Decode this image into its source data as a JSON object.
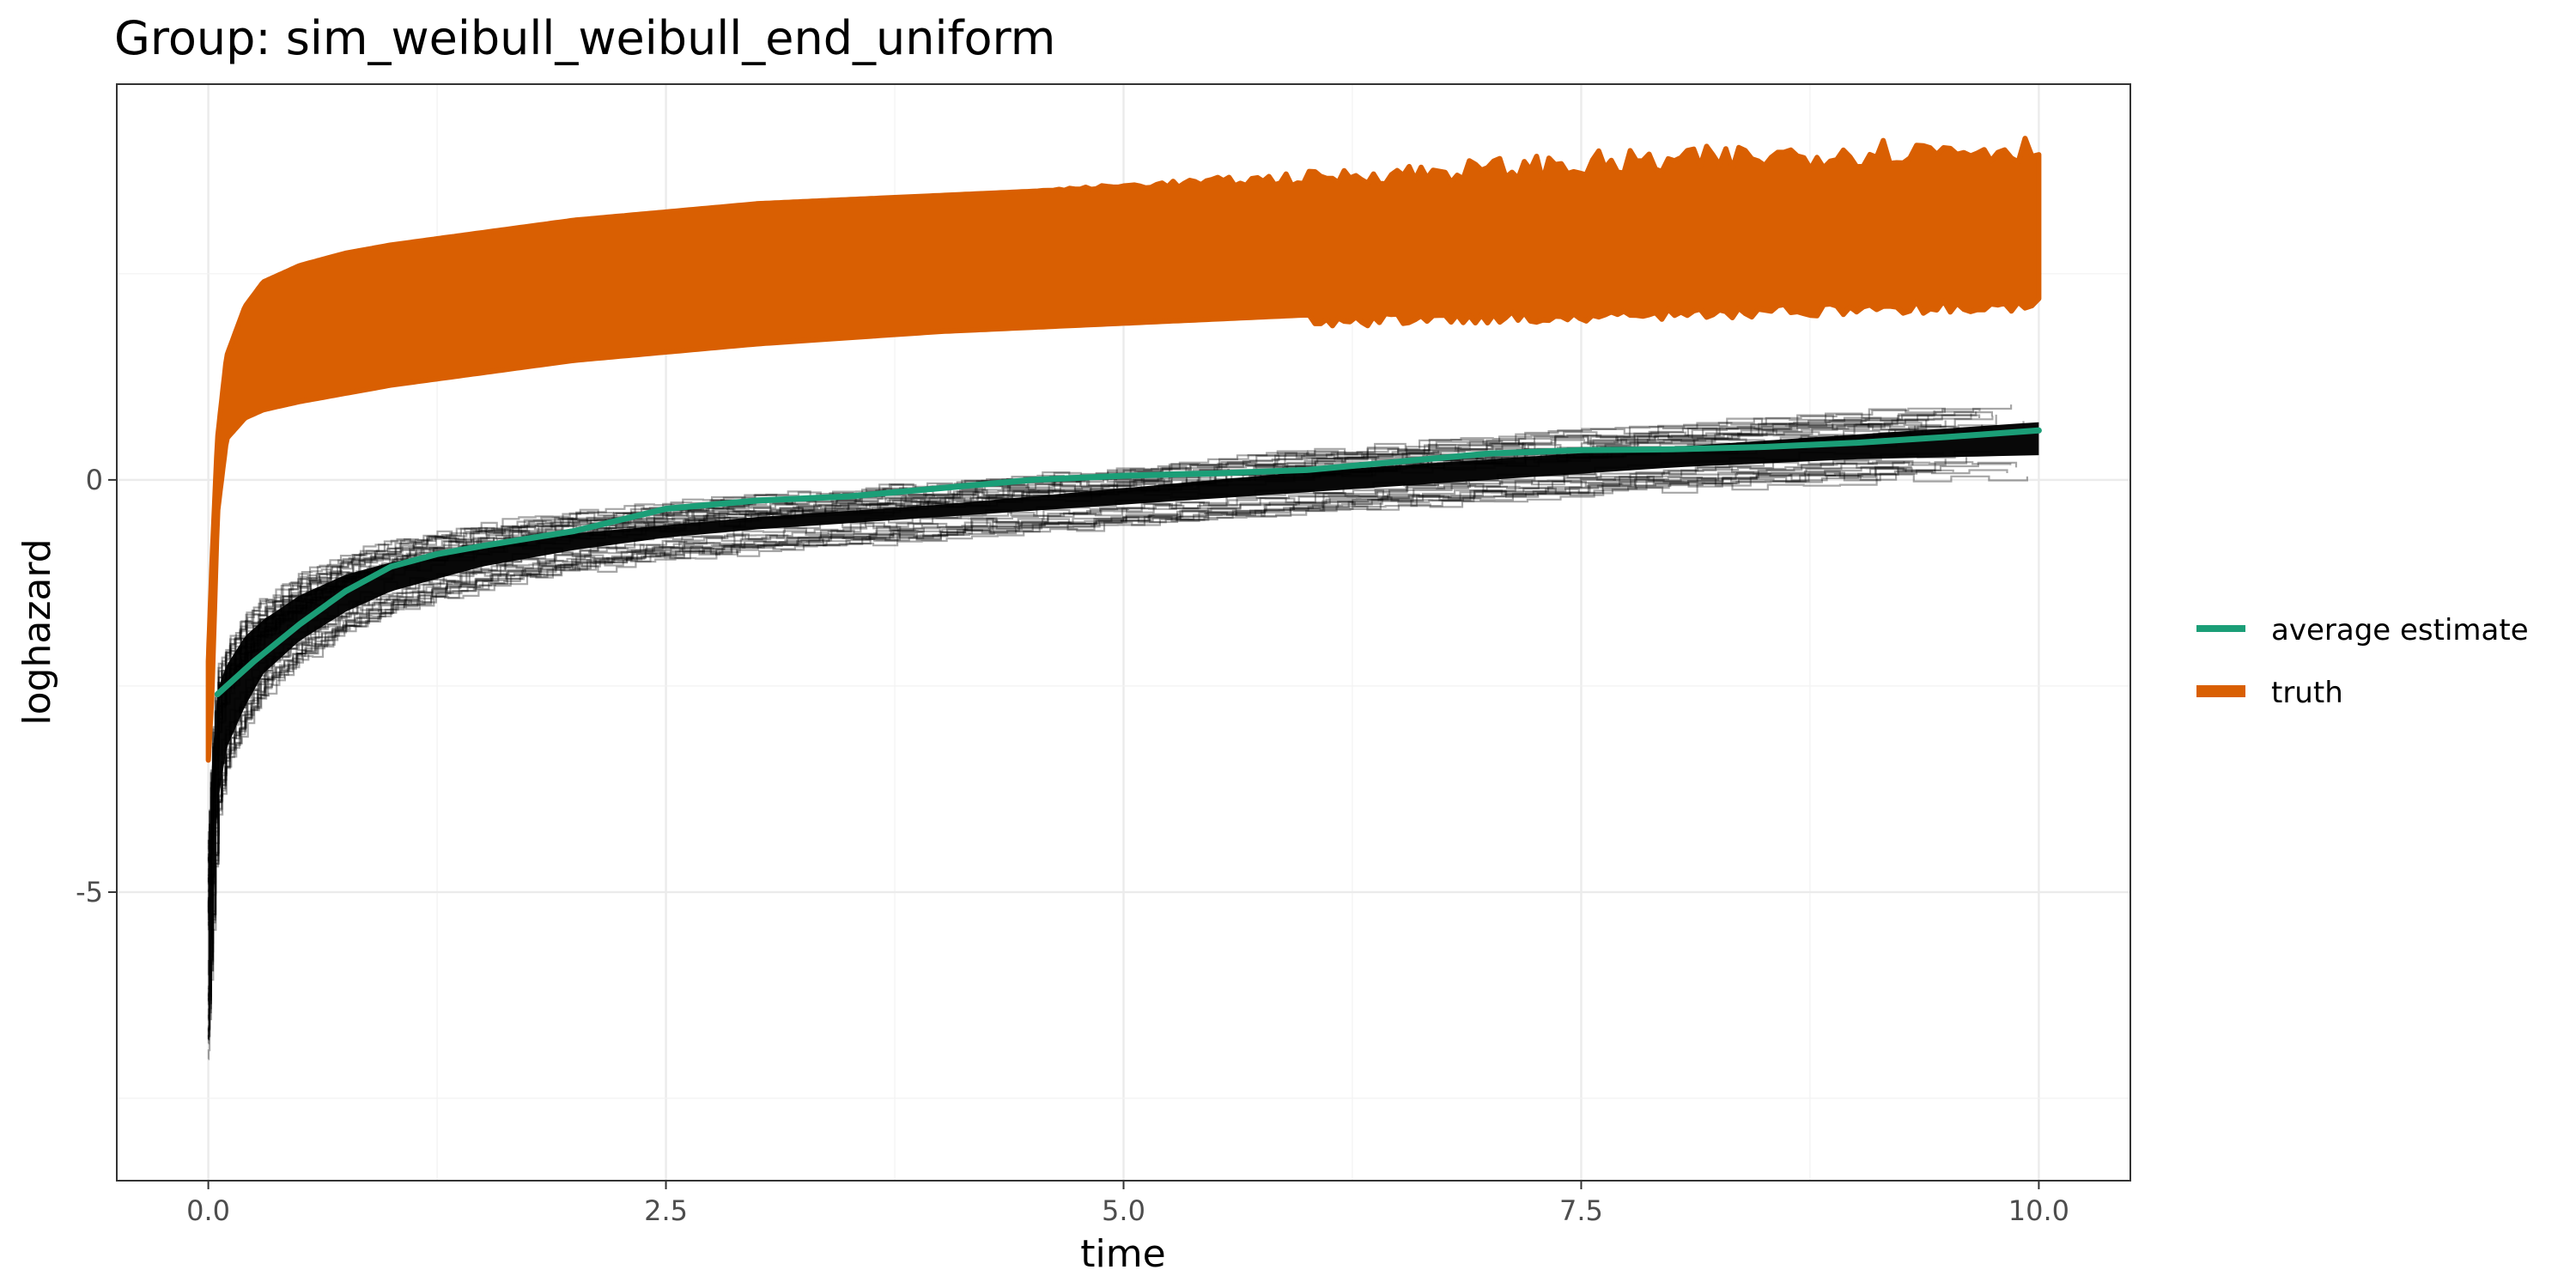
{
  "chart_data": {
    "type": "line",
    "title": "Group: sim_weibull_weibull_end_uniform",
    "xlabel": "time",
    "ylabel": "loghazard",
    "xlim": [
      -0.5,
      10.5
    ],
    "ylim": [
      -8.5,
      4.8
    ],
    "x_ticks": [
      0.0,
      2.5,
      5.0,
      7.5,
      10.0
    ],
    "x_tick_labels": [
      "0.0",
      "2.5",
      "5.0",
      "7.5",
      "10.0"
    ],
    "y_ticks": [
      0,
      -5
    ],
    "y_tick_labels": [
      "0",
      "-5"
    ],
    "grid": true,
    "legend_position": "right",
    "legend": [
      {
        "label": "average estimate",
        "color": "#1b9e77"
      },
      {
        "label": "truth",
        "color": "#d95f02"
      }
    ],
    "series": [
      {
        "name": "average estimate",
        "color": "#1b9e77",
        "x": [
          0.05,
          0.25,
          0.5,
          0.75,
          1.0,
          1.25,
          1.5,
          2.0,
          2.5,
          3.0,
          3.5,
          4.0,
          4.5,
          5.0,
          5.5,
          6.0,
          6.5,
          7.0,
          7.5,
          8.0,
          8.5,
          9.0,
          9.5,
          10.0
        ],
        "y": [
          -2.6,
          -2.2,
          -1.75,
          -1.35,
          -1.05,
          -0.9,
          -0.8,
          -0.62,
          -0.35,
          -0.25,
          -0.2,
          -0.1,
          0.0,
          0.05,
          0.08,
          0.12,
          0.22,
          0.32,
          0.36,
          0.37,
          0.4,
          0.45,
          0.52,
          0.6
        ]
      },
      {
        "name": "truth",
        "color": "#d95f02",
        "x": [
          0.0,
          0.02,
          0.05,
          0.1,
          0.2,
          0.3,
          0.5,
          0.75,
          1.0,
          1.5,
          2.0,
          2.5,
          3.0,
          4.0,
          5.0,
          6.0,
          7.0,
          8.0,
          9.0,
          10.0
        ],
        "y_upper": [
          -2.2,
          -1.0,
          0.5,
          1.5,
          2.1,
          2.4,
          2.6,
          2.75,
          2.85,
          3.0,
          3.15,
          3.25,
          3.35,
          3.45,
          3.55,
          3.62,
          3.7,
          3.78,
          3.9,
          3.95
        ],
        "y_lower": [
          -3.4,
          -2.6,
          -0.4,
          0.5,
          0.75,
          0.85,
          0.95,
          1.05,
          1.15,
          1.3,
          1.45,
          1.55,
          1.65,
          1.8,
          1.9,
          2.0,
          2.05,
          2.1,
          2.15,
          2.2
        ]
      },
      {
        "name": "estimates",
        "color": "#000000",
        "x": [
          0.0,
          0.02,
          0.05,
          0.1,
          0.2,
          0.3,
          0.5,
          0.75,
          1.0,
          1.5,
          2.0,
          2.5,
          3.0,
          4.0,
          5.0,
          6.0,
          7.0,
          8.0,
          9.0,
          10.0
        ],
        "y_upper": [
          -4.4,
          -3.2,
          -2.3,
          -2.0,
          -1.65,
          -1.45,
          -1.15,
          -0.9,
          -0.75,
          -0.55,
          -0.4,
          -0.3,
          -0.2,
          -0.05,
          0.15,
          0.35,
          0.5,
          0.65,
          0.8,
          0.95
        ],
        "y_lower": [
          -7.0,
          -5.8,
          -4.2,
          -3.5,
          -3.0,
          -2.6,
          -2.2,
          -1.85,
          -1.6,
          -1.3,
          -1.1,
          -0.95,
          -0.85,
          -0.7,
          -0.55,
          -0.4,
          -0.25,
          -0.1,
          0.0,
          0.05
        ]
      }
    ]
  }
}
